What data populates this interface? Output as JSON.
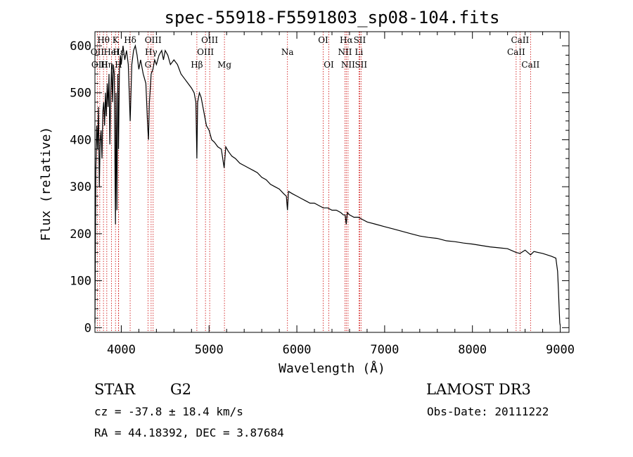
{
  "chart_data": {
    "type": "line",
    "title": "spec-55918-F5591803_sp08-104.fits",
    "xlabel": "Wavelength (Å)",
    "ylabel": "Flux (relative)",
    "xlim": [
      3700,
      9100
    ],
    "ylim": [
      -10,
      630
    ],
    "xticks": [
      4000,
      5000,
      6000,
      7000,
      8000,
      9000
    ],
    "yticks": [
      0,
      100,
      200,
      300,
      400,
      500,
      600
    ],
    "spectrum": {
      "name": "flux",
      "x": [
        3700,
        3710,
        3720,
        3730,
        3740,
        3750,
        3760,
        3770,
        3780,
        3790,
        3800,
        3810,
        3820,
        3830,
        3840,
        3850,
        3860,
        3870,
        3880,
        3890,
        3900,
        3910,
        3920,
        3930,
        3934,
        3940,
        3950,
        3960,
        3968,
        3980,
        3990,
        4000,
        4020,
        4040,
        4060,
        4080,
        4101,
        4120,
        4140,
        4160,
        4180,
        4200,
        4220,
        4250,
        4280,
        4300,
        4310,
        4320,
        4340,
        4360,
        4380,
        4400,
        4430,
        4460,
        4480,
        4500,
        4530,
        4560,
        4600,
        4640,
        4680,
        4720,
        4760,
        4800,
        4830,
        4850,
        4861,
        4870,
        4890,
        4910,
        4930,
        4950,
        4970,
        5000,
        5030,
        5060,
        5100,
        5140,
        5172,
        5190,
        5220,
        5260,
        5300,
        5350,
        5400,
        5450,
        5500,
        5550,
        5600,
        5650,
        5700,
        5750,
        5800,
        5850,
        5880,
        5893,
        5905,
        5950,
        6000,
        6050,
        6100,
        6150,
        6200,
        6250,
        6300,
        6350,
        6400,
        6450,
        6500,
        6530,
        6550,
        6563,
        6575,
        6600,
        6650,
        6700,
        6750,
        6800,
        6900,
        7000,
        7100,
        7200,
        7300,
        7400,
        7500,
        7600,
        7700,
        7800,
        7900,
        8000,
        8100,
        8200,
        8300,
        8400,
        8498,
        8542,
        8600,
        8662,
        8700,
        8800,
        8900,
        8950,
        8970,
        8980,
        8990,
        8995,
        9000
      ],
      "y": [
        10,
        330,
        430,
        380,
        470,
        300,
        400,
        420,
        360,
        460,
        480,
        430,
        500,
        450,
        520,
        470,
        540,
        390,
        500,
        560,
        480,
        560,
        540,
        300,
        220,
        500,
        250,
        540,
        380,
        560,
        580,
        560,
        600,
        570,
        590,
        560,
        440,
        560,
        590,
        600,
        580,
        550,
        570,
        540,
        520,
        430,
        400,
        480,
        540,
        550,
        570,
        560,
        580,
        590,
        570,
        590,
        580,
        560,
        570,
        560,
        540,
        530,
        520,
        510,
        500,
        480,
        360,
        480,
        500,
        490,
        470,
        450,
        430,
        420,
        400,
        395,
        385,
        380,
        340,
        385,
        375,
        365,
        360,
        350,
        345,
        340,
        335,
        330,
        320,
        315,
        305,
        300,
        295,
        285,
        280,
        250,
        290,
        285,
        280,
        275,
        270,
        265,
        265,
        260,
        255,
        255,
        250,
        250,
        245,
        240,
        240,
        220,
        245,
        240,
        235,
        235,
        230,
        225,
        220,
        215,
        210,
        205,
        200,
        195,
        192,
        190,
        185,
        183,
        180,
        178,
        175,
        172,
        170,
        168,
        160,
        158,
        165,
        155,
        162,
        158,
        152,
        148,
        120,
        80,
        30,
        10,
        5
      ]
    },
    "lines": [
      {
        "name": "Hθ",
        "x": 3797,
        "row": 0
      },
      {
        "name": "OII",
        "x": 3727,
        "row": 1
      },
      {
        "name": "OIII",
        "x": 3755,
        "row": 2
      },
      {
        "name": "Hη",
        "x": 3835,
        "row": 2
      },
      {
        "name": "HeI",
        "x": 3889,
        "row": 1
      },
      {
        "name": "K",
        "x": 3934,
        "row": 0
      },
      {
        "name": "H",
        "x": 3968,
        "row": 2
      },
      {
        "name": "Hε",
        "x": 3970,
        "row": 1
      },
      {
        "name": "Hδ",
        "x": 4101,
        "row": 0
      },
      {
        "name": "G",
        "x": 4304,
        "row": 2
      },
      {
        "name": "OIII",
        "x": 4363,
        "row": 0
      },
      {
        "name": "Hγ",
        "x": 4340,
        "row": 1
      },
      {
        "name": "Hβ",
        "x": 4861,
        "row": 2
      },
      {
        "name": "OIII",
        "x": 4959,
        "row": 1
      },
      {
        "name": "OIII",
        "x": 5007,
        "row": 0
      },
      {
        "name": "Mg",
        "x": 5175,
        "row": 2
      },
      {
        "name": "Na",
        "x": 5893,
        "row": 1
      },
      {
        "name": "OI",
        "x": 6300,
        "row": 0
      },
      {
        "name": "OI",
        "x": 6364,
        "row": 2
      },
      {
        "name": "Hα",
        "x": 6563,
        "row": 0
      },
      {
        "name": "NII",
        "x": 6548,
        "row": 1
      },
      {
        "name": "NII",
        "x": 6583,
        "row": 2
      },
      {
        "name": "SII",
        "x": 6716,
        "row": 0
      },
      {
        "name": "Li",
        "x": 6708,
        "row": 1
      },
      {
        "name": "SII",
        "x": 6731,
        "row": 2
      },
      {
        "name": "CaII",
        "x": 8542,
        "row": 0
      },
      {
        "name": "CaII",
        "x": 8498,
        "row": 1
      },
      {
        "name": "CaII",
        "x": 8662,
        "row": 2
      }
    ]
  },
  "info": {
    "class": "STAR",
    "subclass": "G2",
    "survey": "LAMOST DR3",
    "cz": "cz = -37.8 ± 18.4 km/s",
    "obs_date": "Obs-Date: 20111222",
    "radec": "RA =  44.18392, DEC =   3.87684"
  },
  "colors": {
    "spectrum": "#000000",
    "line_marker": "#cc0000",
    "axis": "#000000"
  }
}
